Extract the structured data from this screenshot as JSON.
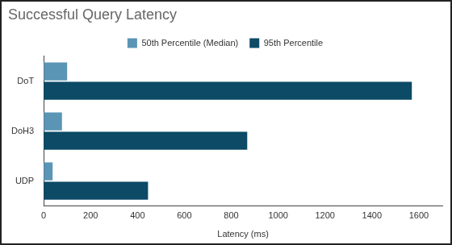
{
  "chart_data": {
    "type": "bar",
    "orientation": "horizontal",
    "title": "Successful Query Latency",
    "x_label": "Latency (ms)",
    "categories": [
      "DoT",
      "DoH3",
      "UDP"
    ],
    "series": [
      {
        "name": "50th Percentile (Median)",
        "color": "#5b95b5",
        "values": [
          100,
          78,
          38
        ]
      },
      {
        "name": "95th Percentile",
        "color": "#0c4a66",
        "values": [
          1570,
          868,
          445
        ]
      }
    ],
    "xlim": [
      0,
      1700
    ],
    "xticks": [
      0,
      200,
      400,
      600,
      800,
      1000,
      1200,
      1400,
      1600
    ],
    "grid": false,
    "legend": "top"
  }
}
